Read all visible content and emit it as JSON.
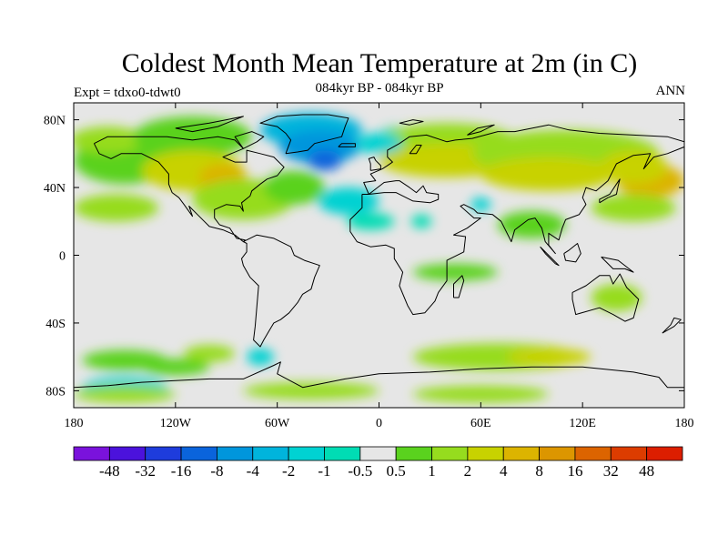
{
  "header": {
    "title": "Coldest Month Mean Temperature at 2m (in C)",
    "subtitle": "084kyr BP - 084kyr BP",
    "left_label": "Expt = tdxo0-tdwt0",
    "right_label": "ANN"
  },
  "map": {
    "projection": "cylindrical-equidistant",
    "lon_range": [
      -180,
      180
    ],
    "lat_range": [
      -90,
      90
    ],
    "x_ticks": [
      {
        "lon": -180,
        "label": "180"
      },
      {
        "lon": -120,
        "label": "120W"
      },
      {
        "lon": -60,
        "label": "60W"
      },
      {
        "lon": 0,
        "label": "0"
      },
      {
        "lon": 60,
        "label": "60E"
      },
      {
        "lon": 120,
        "label": "120E"
      },
      {
        "lon": 180,
        "label": "180"
      }
    ],
    "y_ticks": [
      {
        "lat": 80,
        "label": "80N"
      },
      {
        "lat": 40,
        "label": "40N"
      },
      {
        "lat": 0,
        "label": "0"
      },
      {
        "lat": -40,
        "label": "40S"
      },
      {
        "lat": -80,
        "label": "80S"
      }
    ],
    "background_color": "#e6e6e6",
    "coastline_color": "#000000"
  },
  "colorbar": {
    "colors": [
      "#7a12dc",
      "#4b12dc",
      "#1e3cdc",
      "#0a64dc",
      "#0096dc",
      "#00b4dc",
      "#00d2d2",
      "#00dcb4",
      "#e6e6e6",
      "#5ad21e",
      "#96dc1e",
      "#c8d200",
      "#dcb400",
      "#dc9600",
      "#dc6400",
      "#dc3c00",
      "#dc1e00"
    ],
    "labels": [
      "-48",
      "-32",
      "-16",
      "-8",
      "-4",
      "-2",
      "-1",
      "-0.5",
      "0.5",
      "1",
      "2",
      "4",
      "8",
      "16",
      "32",
      "48"
    ]
  },
  "fields": {
    "legend_index_note": "",
    "blobs": [
      {
        "color": "#5ad21e",
        "lon": -150,
        "lat": 56,
        "rlon": 30,
        "rlat": 14
      },
      {
        "color": "#96dc1e",
        "lon": -160,
        "lat": 68,
        "rlon": 22,
        "rlat": 8
      },
      {
        "color": "#5ad21e",
        "lon": -110,
        "lat": 70,
        "rlon": 35,
        "rlat": 12
      },
      {
        "color": "#c8d200",
        "lon": -110,
        "lat": 50,
        "rlon": 30,
        "rlat": 12
      },
      {
        "color": "#dcb400",
        "lon": -92,
        "lat": 46,
        "rlon": 14,
        "rlat": 8
      },
      {
        "color": "#96dc1e",
        "lon": -80,
        "lat": 33,
        "rlon": 30,
        "rlat": 12
      },
      {
        "color": "#5ad21e",
        "lon": -50,
        "lat": 40,
        "rlon": 18,
        "rlat": 10
      },
      {
        "color": "#00b4dc",
        "lon": -40,
        "lat": 74,
        "rlon": 30,
        "rlat": 10
      },
      {
        "color": "#0096dc",
        "lon": -35,
        "lat": 64,
        "rlon": 24,
        "rlat": 10
      },
      {
        "color": "#0a64dc",
        "lon": -32,
        "lat": 56,
        "rlon": 10,
        "rlat": 6
      },
      {
        "color": "#00d2d2",
        "lon": -18,
        "lat": 32,
        "rlon": 18,
        "rlat": 8
      },
      {
        "color": "#00dcb4",
        "lon": -5,
        "lat": 20,
        "rlon": 14,
        "rlat": 5
      },
      {
        "color": "#00dcb4",
        "lon": 10,
        "lat": 70,
        "rlon": 10,
        "rlat": 6
      },
      {
        "color": "#96dc1e",
        "lon": 40,
        "lat": 68,
        "rlon": 40,
        "rlat": 10
      },
      {
        "color": "#c8d200",
        "lon": 40,
        "lat": 56,
        "rlon": 40,
        "rlat": 10
      },
      {
        "color": "#96dc1e",
        "lon": 110,
        "lat": 60,
        "rlon": 55,
        "rlat": 14
      },
      {
        "color": "#c8d200",
        "lon": 100,
        "lat": 48,
        "rlon": 40,
        "rlat": 10
      },
      {
        "color": "#dcb400",
        "lon": 160,
        "lat": 44,
        "rlon": 20,
        "rlat": 10
      },
      {
        "color": "#c8d200",
        "lon": 150,
        "lat": 52,
        "rlon": 20,
        "rlat": 10
      },
      {
        "color": "#96dc1e",
        "lon": -155,
        "lat": 28,
        "rlon": 25,
        "rlat": 8
      },
      {
        "color": "#96dc1e",
        "lon": 150,
        "lat": 28,
        "rlon": 25,
        "rlat": 8
      },
      {
        "color": "#5ad21e",
        "lon": 90,
        "lat": 18,
        "rlon": 20,
        "rlat": 8
      },
      {
        "color": "#5ad21e",
        "lon": 45,
        "lat": -10,
        "rlon": 25,
        "rlat": 5
      },
      {
        "color": "#96dc1e",
        "lon": 140,
        "lat": -25,
        "rlon": 15,
        "rlat": 8
      },
      {
        "color": "#00d2d2",
        "lon": -70,
        "lat": -60,
        "rlon": 8,
        "rlat": 5
      },
      {
        "color": "#00d2d2",
        "lon": -150,
        "lat": -78,
        "rlon": 25,
        "rlat": 6
      },
      {
        "color": "#96dc1e",
        "lon": 70,
        "lat": -60,
        "rlon": 50,
        "rlat": 8
      },
      {
        "color": "#c8d200",
        "lon": 100,
        "lat": -60,
        "rlon": 25,
        "rlat": 5
      },
      {
        "color": "#96dc1e",
        "lon": -150,
        "lat": -82,
        "rlon": 30,
        "rlat": 5
      },
      {
        "color": "#96dc1e",
        "lon": -40,
        "lat": -80,
        "rlon": 40,
        "rlat": 5
      },
      {
        "color": "#96dc1e",
        "lon": 60,
        "lat": -82,
        "rlon": 40,
        "rlat": 5
      },
      {
        "color": "#00d2d2",
        "lon": 0,
        "lat": 66,
        "rlon": 14,
        "rlat": 6
      },
      {
        "color": "#5ad21e",
        "lon": -150,
        "lat": -62,
        "rlon": 25,
        "rlat": 6
      },
      {
        "color": "#5ad21e",
        "lon": -120,
        "lat": -66,
        "rlon": 20,
        "rlat": 5
      },
      {
        "color": "#96dc1e",
        "lon": -100,
        "lat": -58,
        "rlon": 15,
        "rlat": 5
      },
      {
        "color": "#00d2d2",
        "lon": 60,
        "lat": 30,
        "rlon": 6,
        "rlat": 4
      },
      {
        "color": "#00dcb4",
        "lon": 25,
        "lat": 20,
        "rlon": 6,
        "rlat": 4
      }
    ]
  }
}
